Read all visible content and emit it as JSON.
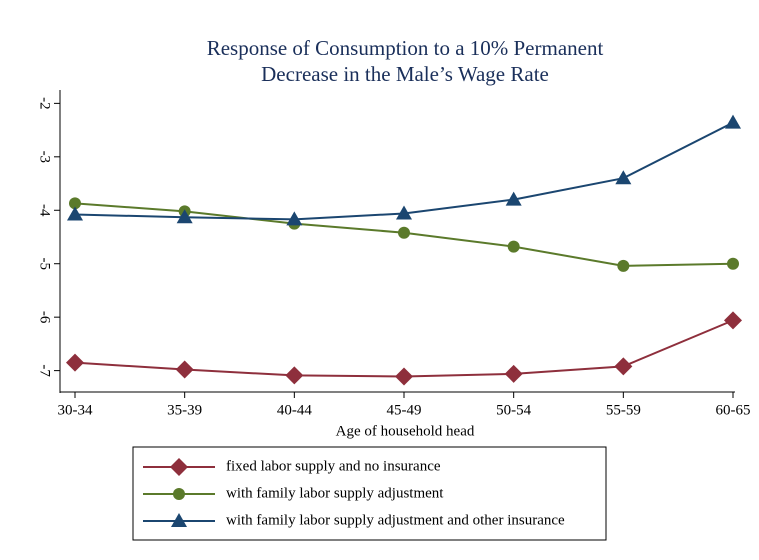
{
  "chart_data": {
    "type": "line",
    "title": [
      "Response of Consumption to a 10% Permanent",
      "Decrease in the Male’s Wage Rate"
    ],
    "x_label": "Age of household head",
    "categories": [
      "30-34",
      "35-39",
      "40-44",
      "45-49",
      "50-54",
      "55-59",
      "60-65"
    ],
    "series": [
      {
        "name": "fixed labor supply and no insurance",
        "color": "#8e2f3c",
        "marker": "diamond",
        "values": [
          -6.85,
          -6.98,
          -7.09,
          -7.11,
          -7.06,
          -6.92,
          -6.06
        ]
      },
      {
        "name": "with family labor supply adjustment",
        "color": "#5b7a2b",
        "marker": "circle",
        "values": [
          -3.87,
          -4.02,
          -4.25,
          -4.42,
          -4.68,
          -5.04,
          -5.0
        ]
      },
      {
        "name": "with family labor supply adjustment and other insurance",
        "color": "#1b4670",
        "marker": "triangle",
        "values": [
          -4.08,
          -4.13,
          -4.17,
          -4.06,
          -3.8,
          -3.4,
          -2.36
        ]
      }
    ],
    "ylim": [
      -7.4,
      -1.75
    ],
    "yticks": [
      -7,
      -6,
      -5,
      -4,
      -3,
      -2
    ],
    "grid": false,
    "legend": "bottom"
  }
}
